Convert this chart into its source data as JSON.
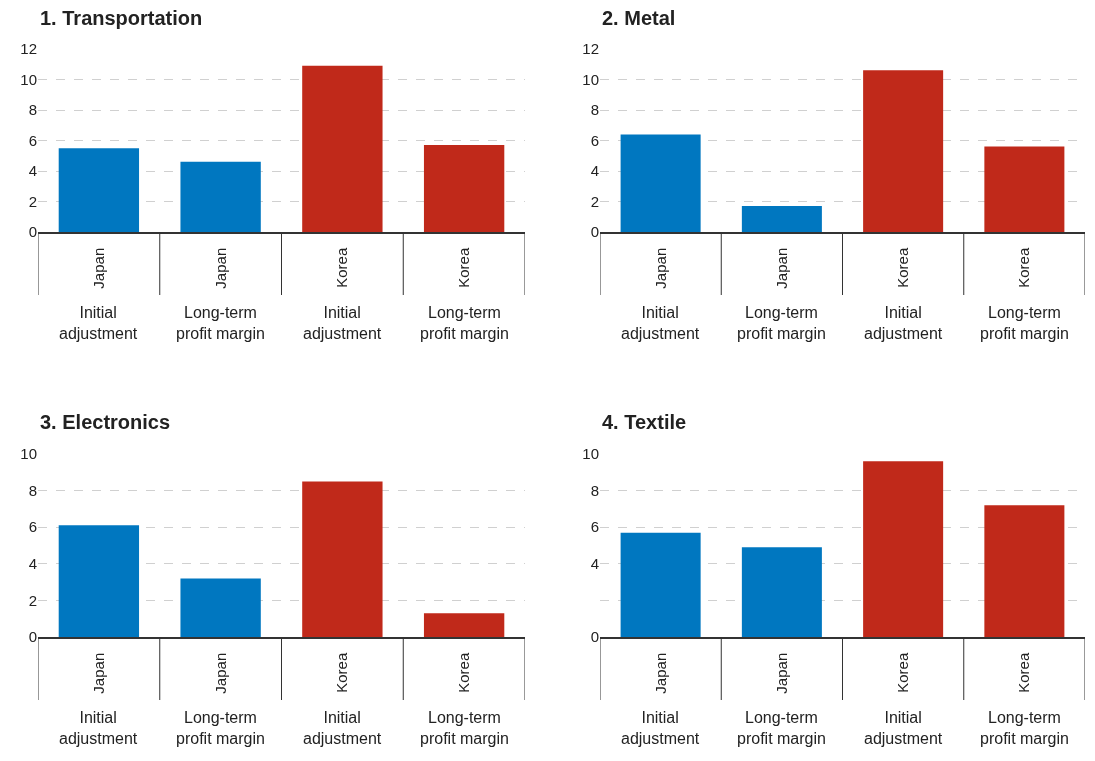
{
  "chart_data": [
    {
      "type": "bar",
      "title": "1. Transportation",
      "categories": [
        "Japan",
        "Japan",
        "Korea",
        "Korea"
      ],
      "values": [
        5.5,
        4.6,
        10.9,
        5.7
      ],
      "colors": [
        "#0077c0",
        "#0077c0",
        "#c0291a",
        "#c0291a"
      ],
      "ylim": [
        0,
        12
      ],
      "yticks": [
        0,
        2,
        4,
        6,
        8,
        10,
        12
      ],
      "grid": "y",
      "annotations": [
        "Initial\nadjustment",
        "Long-term\nprofit margin",
        "Initial\nadjustment",
        "Long-term\nprofit margin"
      ]
    },
    {
      "type": "bar",
      "title": "2. Metal",
      "categories": [
        "Japan",
        "Japan",
        "Korea",
        "Korea"
      ],
      "values": [
        6.4,
        1.7,
        10.6,
        5.6
      ],
      "colors": [
        "#0077c0",
        "#0077c0",
        "#c0291a",
        "#c0291a"
      ],
      "ylim": [
        0,
        12
      ],
      "yticks": [
        0,
        2,
        4,
        6,
        8,
        10,
        12
      ],
      "grid": "y",
      "annotations": [
        "Initial\nadjustment",
        "Long-term\nprofit margin",
        "Initial\nadjustment",
        "Long-term\nprofit margin"
      ]
    },
    {
      "type": "bar",
      "title": "3. Electronics",
      "categories": [
        "Japan",
        "Japan",
        "Korea",
        "Korea"
      ],
      "values": [
        6.1,
        3.2,
        8.5,
        1.3
      ],
      "colors": [
        "#0077c0",
        "#0077c0",
        "#c0291a",
        "#c0291a"
      ],
      "ylim": [
        0,
        10
      ],
      "yticks": [
        0,
        2,
        4,
        6,
        8,
        10
      ],
      "grid": "y",
      "annotations": [
        "Initial\nadjustment",
        "Long-term\nprofit margin",
        "Initial\nadjustment",
        "Long-term\nprofit margin"
      ]
    },
    {
      "type": "bar",
      "title": "4. Textile",
      "categories": [
        "Japan",
        "Japan",
        "Korea",
        "Korea"
      ],
      "values": [
        5.7,
        4.9,
        9.6,
        7.2
      ],
      "colors": [
        "#0077c0",
        "#0077c0",
        "#c0291a",
        "#c0291a"
      ],
      "ylim": [
        0,
        10
      ],
      "yticks": [
        0,
        {
          "value": 2,
          "label": null
        },
        4,
        6,
        8,
        10
      ],
      "grid": "y",
      "annotations": [
        "Initial\nadjustment",
        "Long-term\nprofit margin",
        "Initial\nadjustment",
        "Long-term\nprofit margin"
      ]
    }
  ]
}
